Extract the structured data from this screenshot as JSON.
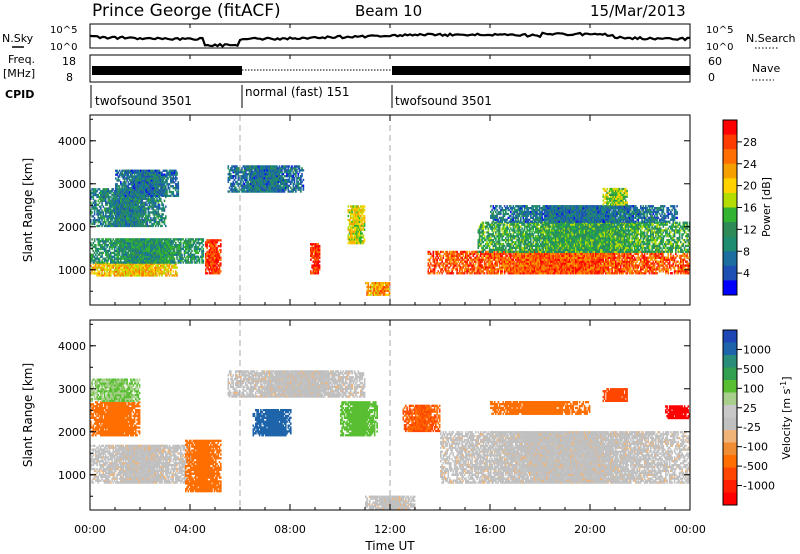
{
  "header": {
    "station": "Prince George (fitACF)",
    "beam": "Beam 10",
    "date": "15/Mar/2013"
  },
  "panels": {
    "noise_left_label": "N.Sky",
    "noise_right_label": "N.Search",
    "noise_left_ticks": [
      "10^5",
      "10^0"
    ],
    "noise_right_ticks": [
      "10^5",
      "10^0"
    ],
    "freq_label_line1": "Freq.",
    "freq_label_line2": "[MHz]",
    "freq_ticks": [
      "18",
      "8"
    ],
    "nave_label": "Nave",
    "nave_ticks": [
      "60",
      "0"
    ],
    "cpid_label": "CPID",
    "cpid_segments": [
      {
        "label": "twofsound 3501",
        "start": 0,
        "end": 6
      },
      {
        "label": "normal (fast) 151",
        "start": 6,
        "end": 12
      },
      {
        "label": "twofsound 3501",
        "start": 12,
        "end": 24
      }
    ]
  },
  "colorbars": {
    "power": {
      "title": "Power [dB]",
      "ticks": [
        "28",
        "24",
        "20",
        "16",
        "12",
        "8",
        "4"
      ],
      "colors": [
        "#ff0000",
        "#ff3c00",
        "#ff6e00",
        "#f5a000",
        "#ffd200",
        "#b4dc00",
        "#32b432",
        "#2e8b57",
        "#1e8c6e",
        "#1c6ea0",
        "#1e50b4",
        "#0000ff"
      ]
    },
    "velocity": {
      "title": "Velocity [m s",
      "title_sup": "-1",
      "title_end": "]",
      "ticks": [
        "1000",
        "500",
        "100",
        "25",
        "-25",
        "-100",
        "-500",
        "-1000"
      ],
      "colors": [
        "#1e46b4",
        "#1e64aa",
        "#2a8c7a",
        "#32a050",
        "#5abe32",
        "#a8d08c",
        "#c8c8c8",
        "#c0c0c0",
        "#f0b478",
        "#f08c32",
        "#ff6e00",
        "#ff4600",
        "#ff1e00",
        "#ff0000"
      ]
    }
  },
  "axes": {
    "ylabel": "Slant Range [km]",
    "yticks": [
      "1000",
      "2000",
      "3000",
      "4000"
    ],
    "xticks": [
      "00:00",
      "04:00",
      "08:00",
      "12:00",
      "16:00",
      "20:00",
      "00:00"
    ],
    "xlabel": "Time UT"
  },
  "chart_data": {
    "type": "heatmap",
    "title": "Prince George (fitACF)  Beam 10  15/Mar/2013",
    "xlabel": "Time UT",
    "ylabel": "Slant Range [km]",
    "xlim": [
      0,
      24
    ],
    "ylim": [
      180,
      4600
    ],
    "program_changes_ut": [
      6,
      12
    ],
    "power_bands": [
      {
        "t0": 0.0,
        "t1": 3.5,
        "r0": 850,
        "r1": 1150,
        "level": 20
      },
      {
        "t0": 0.0,
        "t1": 4.5,
        "r0": 1150,
        "r1": 1700,
        "level": 10
      },
      {
        "t0": 0.0,
        "t1": 3.0,
        "r0": 2000,
        "r1": 2900,
        "level": 8
      },
      {
        "t0": 1.0,
        "t1": 3.5,
        "r0": 2700,
        "r1": 3300,
        "level": 6
      },
      {
        "t0": 4.6,
        "t1": 5.2,
        "r0": 900,
        "r1": 1700,
        "level": 28
      },
      {
        "t0": 5.5,
        "t1": 8.5,
        "r0": 2800,
        "r1": 3400,
        "level": 6
      },
      {
        "t0": 8.8,
        "t1": 9.2,
        "r0": 900,
        "r1": 1600,
        "level": 28
      },
      {
        "t0": 10.3,
        "t1": 11.0,
        "r0": 1600,
        "r1": 2500,
        "level": 18
      },
      {
        "t0": 11.0,
        "t1": 12.0,
        "r0": 400,
        "r1": 700,
        "level": 22
      },
      {
        "t0": 13.5,
        "t1": 24.0,
        "r0": 900,
        "r1": 1400,
        "level": 26
      },
      {
        "t0": 15.5,
        "t1": 24.0,
        "r0": 1400,
        "r1": 2100,
        "level": 12
      },
      {
        "t0": 16.0,
        "t1": 23.5,
        "r0": 2100,
        "r1": 2500,
        "level": 6
      },
      {
        "t0": 20.5,
        "t1": 21.5,
        "r0": 2500,
        "r1": 2900,
        "level": 16
      }
    ],
    "velocity_bands": [
      {
        "t0": 0.0,
        "t1": 4.0,
        "r0": 800,
        "r1": 1700,
        "v": 0
      },
      {
        "t0": 3.8,
        "t1": 5.2,
        "r0": 600,
        "r1": 1800,
        "v": -200
      },
      {
        "t0": 0.0,
        "t1": 2.0,
        "r0": 1900,
        "r1": 2700,
        "v": -150
      },
      {
        "t0": 0.0,
        "t1": 2.0,
        "r0": 2700,
        "r1": 3200,
        "v": 100
      },
      {
        "t0": 5.5,
        "t1": 11.0,
        "r0": 2800,
        "r1": 3400,
        "v": 0
      },
      {
        "t0": 6.5,
        "t1": 8.0,
        "r0": 1900,
        "r1": 2500,
        "v": 800
      },
      {
        "t0": 10.0,
        "t1": 11.5,
        "r0": 1900,
        "r1": 2700,
        "v": 150
      },
      {
        "t0": 11.0,
        "t1": 13.0,
        "r0": 200,
        "r1": 500,
        "v": 0
      },
      {
        "t0": 12.5,
        "t1": 14.0,
        "r0": 2000,
        "r1": 2600,
        "v": -300
      },
      {
        "t0": 14.0,
        "t1": 24.0,
        "r0": 800,
        "r1": 2000,
        "v": 0
      },
      {
        "t0": 16.0,
        "t1": 20.0,
        "r0": 2400,
        "r1": 2700,
        "v": -150
      },
      {
        "t0": 20.5,
        "t1": 21.5,
        "r0": 2700,
        "r1": 3000,
        "v": -400
      },
      {
        "t0": 23.0,
        "t1": 24.0,
        "r0": 2300,
        "r1": 2600,
        "v": -1000
      }
    ]
  }
}
